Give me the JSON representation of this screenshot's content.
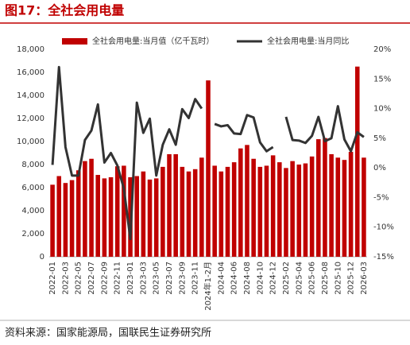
{
  "header": {
    "title": "图17：全社会用电量"
  },
  "chart_data": {
    "type": "bar-line",
    "categories": [
      "2022-01",
      null,
      "2022-03",
      null,
      "2022-05",
      null,
      "2022-07",
      null,
      "2022-09",
      null,
      "2022-11",
      null,
      "2023-01",
      null,
      "2023-03",
      null,
      "2023-05",
      null,
      "2023-07",
      null,
      "2023-09",
      null,
      "2023-11",
      null,
      "2024年1-2月",
      null,
      "2024-04",
      null,
      "2024-06",
      null,
      "2024-08",
      null,
      "2024-10",
      null,
      "2024-12",
      null,
      "2025-02",
      null,
      "2025-04",
      null,
      "2025-06",
      null,
      "2025-08",
      null,
      "2025-10",
      null,
      "2025-12",
      null,
      "2026-03"
    ],
    "series": [
      {
        "name": "全社会用电量:当月值（亿千瓦时）",
        "color": "#c00000",
        "type": "bar",
        "values": [
          6250,
          7000,
          6400,
          6650,
          7500,
          8300,
          8500,
          7100,
          6800,
          6900,
          7850,
          7900,
          6900,
          7000,
          7400,
          6700,
          6800,
          7800,
          8900,
          8900,
          7800,
          7400,
          7600,
          8600,
          15300,
          7900,
          7400,
          7800,
          8200,
          9400,
          9700,
          8500,
          7800,
          7900,
          8800,
          8200,
          7700,
          8300,
          8000,
          8100,
          8700,
          10200,
          10300,
          8900,
          8600,
          8400,
          9100,
          16500,
          8600
        ]
      },
      {
        "name": "全社会用电量:当月同比",
        "color": "#333333",
        "type": "line",
        "axis": "y2",
        "values": [
          0.5,
          17,
          3.5,
          -1.3,
          -1.3,
          4.7,
          6.3,
          10.7,
          0.9,
          2.5,
          0.4,
          -3.5,
          -12,
          11,
          5.9,
          8.3,
          -1.3,
          3.9,
          6.5,
          3.9,
          9.9,
          8.4,
          11.6,
          10,
          null,
          7.4,
          7.0,
          7.2,
          5.8,
          5.7,
          8.9,
          8.5,
          4.3,
          2.8,
          3.5,
          null,
          8.6,
          4.7,
          4.6,
          4.2,
          5.4,
          8.6,
          4.5,
          5.0,
          10.4,
          4.8,
          2.8,
          6.0,
          5.2
        ]
      }
    ],
    "ylim": [
      0,
      18000
    ],
    "yticks": [
      0,
      {
        "value": 2000,
        "label": "2,000"
      },
      {
        "value": 4000,
        "label": "4,000"
      },
      {
        "value": 6000,
        "label": "6,000"
      },
      {
        "value": 8000,
        "label": "8,000"
      },
      {
        "value": 10000,
        "label": "10,000"
      },
      {
        "value": 12000,
        "label": "12,000"
      },
      {
        "value": 14000,
        "label": "14,000"
      },
      {
        "value": 16000,
        "label": "16,000"
      },
      {
        "value": 18000,
        "label": "18,000"
      }
    ],
    "y2lim": [
      -15,
      20
    ],
    "y2ticks": [
      {
        "value": -15,
        "label": "-15%"
      },
      {
        "value": -10,
        "label": "-10%"
      },
      {
        "value": -5,
        "label": "-5%"
      },
      {
        "value": 0,
        "label": "0%"
      },
      {
        "value": 5,
        "label": "5%"
      },
      {
        "value": 10,
        "label": "10%"
      },
      {
        "value": 15,
        "label": "15%"
      },
      {
        "value": 20,
        "label": "20%"
      }
    ]
  },
  "footer": {
    "source": "资料来源：国家能源局，国联民生证券研究所"
  }
}
